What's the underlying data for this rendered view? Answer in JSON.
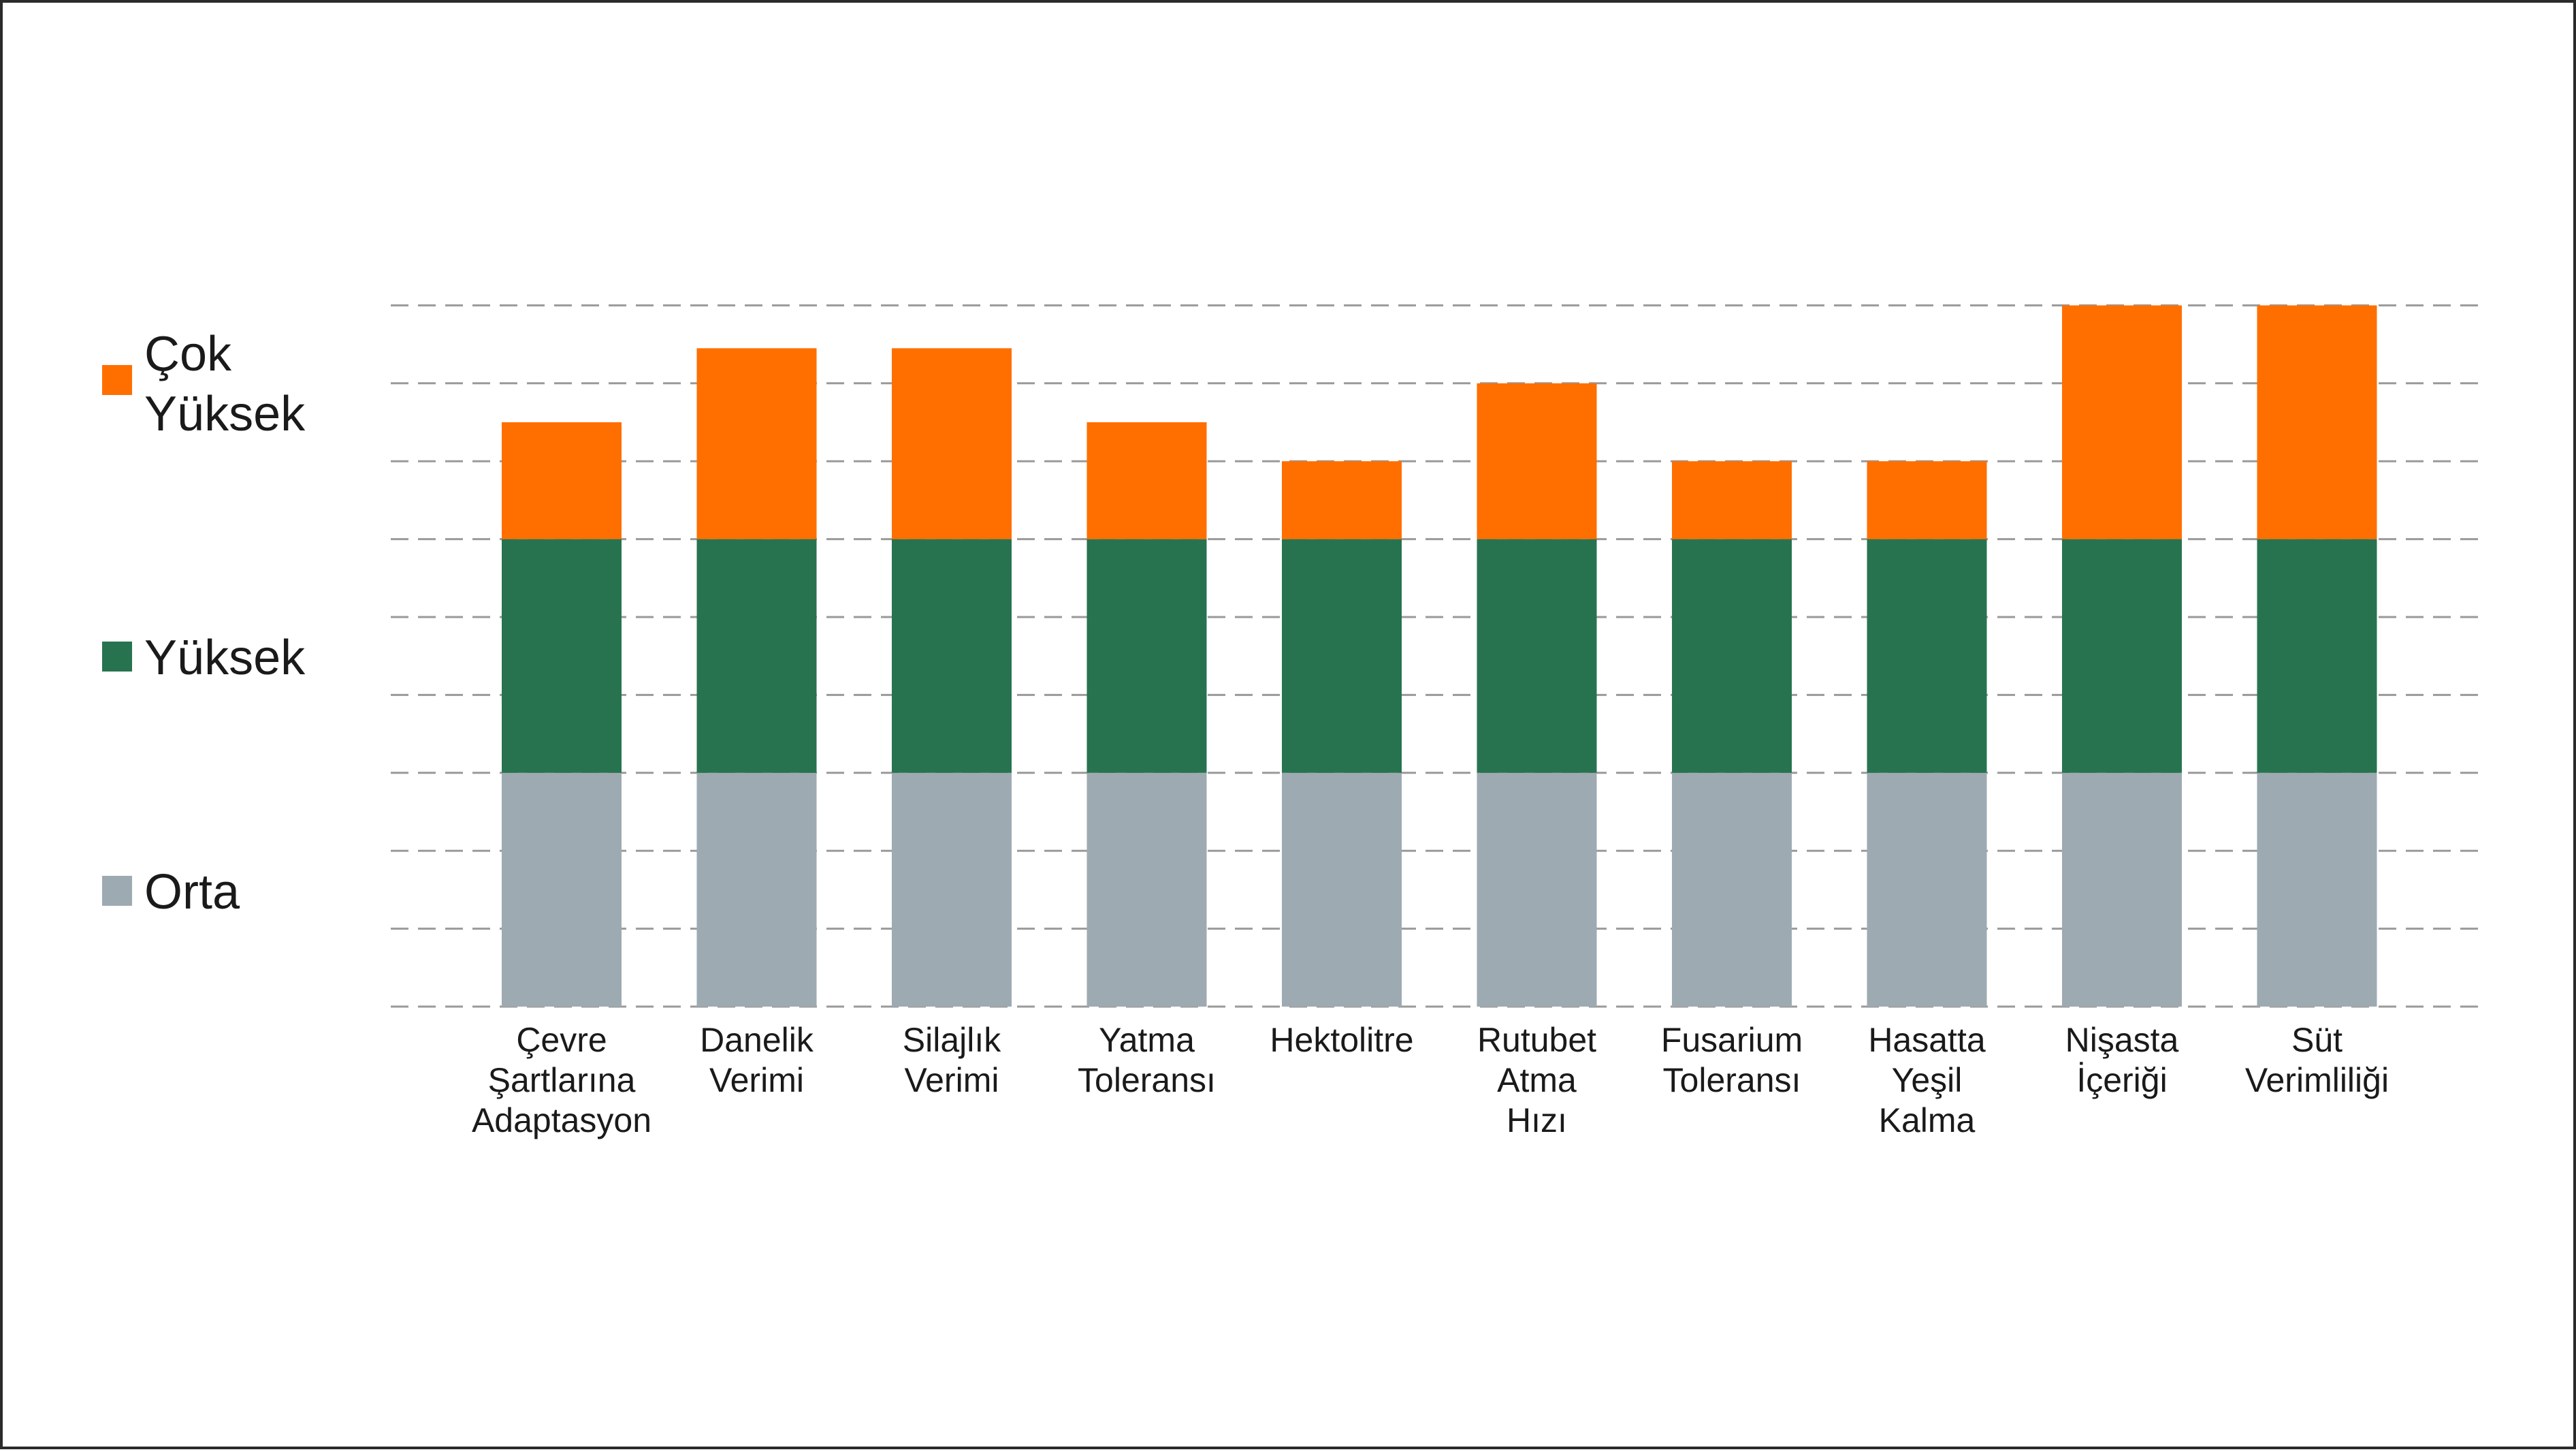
{
  "chart_data": {
    "type": "bar",
    "stacked": true,
    "categories": [
      [
        "Çevre",
        "Şartlarına",
        "Adaptasyon"
      ],
      [
        "Danelik",
        "Verimi"
      ],
      [
        "Silajlık",
        "Verimi"
      ],
      [
        "Yatma",
        "Toleransı"
      ],
      [
        "Hektolitre"
      ],
      [
        "Rutubet",
        "Atma",
        "Hızı"
      ],
      [
        "Fusarium",
        "Toleransı"
      ],
      [
        "Hasatta",
        "Yeşil",
        "Kalma"
      ],
      [
        "Nişasta",
        "İçeriği"
      ],
      [
        "Süt",
        "Verimliliği"
      ]
    ],
    "series": [
      {
        "name": "Orta",
        "color": "#9eaab1",
        "values": [
          3,
          3,
          3,
          3,
          3,
          3,
          3,
          3,
          3,
          3
        ]
      },
      {
        "name": "Yüksek",
        "color": "#277350",
        "values": [
          3,
          3,
          3,
          3,
          3,
          3,
          3,
          3,
          3,
          3
        ]
      },
      {
        "name": "Çok Yüksek",
        "color": "#ff6f00",
        "values": [
          1.5,
          2.45,
          2.45,
          1.5,
          1,
          2,
          1,
          1,
          3,
          3
        ]
      }
    ],
    "legend": {
      "placement": "left",
      "items": [
        {
          "lines": [
            "Çok",
            "Yüksek"
          ],
          "color": "#ff6f00"
        },
        {
          "lines": [
            "Yüksek"
          ],
          "color": "#277350"
        },
        {
          "lines": [
            "Orta"
          ],
          "color": "#9eaab1"
        }
      ]
    },
    "ylim": [
      0,
      9
    ],
    "grid": true,
    "grid_style": "dashed",
    "y_tick_labels": false
  }
}
